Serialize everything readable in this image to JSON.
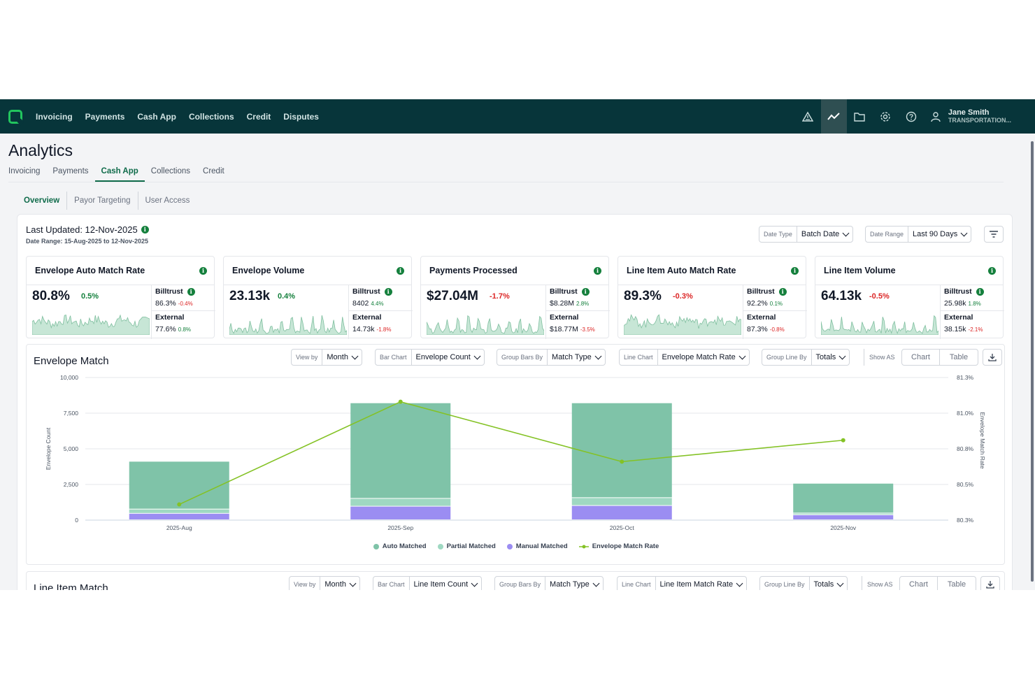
{
  "nav": {
    "links": [
      "Invoicing",
      "Payments",
      "Cash App",
      "Collections",
      "Credit",
      "Disputes"
    ],
    "icons": [
      "alert-triangle-icon",
      "analytics-icon",
      "folder-icon",
      "gear-icon",
      "help-icon",
      "user-icon"
    ],
    "user_name": "Jane Smith",
    "user_org": "TRANSPORTATION..."
  },
  "page": {
    "title": "Analytics",
    "tabs": [
      "Invoicing",
      "Payments",
      "Cash App",
      "Collections",
      "Credit"
    ],
    "active_tab": "Cash App",
    "subtabs": [
      "Overview",
      "Payor Targeting",
      "User Access"
    ],
    "active_subtab": "Overview"
  },
  "header": {
    "last_updated": "Last Updated: 12-Nov-2025",
    "date_range": "Date Range: 15-Aug-2025 to 12-Nov-2025",
    "date_type_label": "Date Type",
    "date_type_value": "Batch Date",
    "date_range_label": "Date Range",
    "date_range_value": "Last 90 Days"
  },
  "kpis": [
    {
      "title": "Envelope Auto Match Rate",
      "value": "80.8%",
      "change": "0.5%",
      "change_dir": "pos",
      "billtrust_label": "Billtrust",
      "billtrust_value": "86.3%",
      "billtrust_change": "-0.4%",
      "billtrust_dir": "neg",
      "external_label": "External",
      "external_value": "77.6%",
      "external_change": "0.8%",
      "external_dir": "pos"
    },
    {
      "title": "Envelope Volume",
      "value": "23.13k",
      "change": "0.4%",
      "change_dir": "pos",
      "billtrust_label": "Billtrust",
      "billtrust_value": "8402",
      "billtrust_change": "4.4%",
      "billtrust_dir": "pos",
      "external_label": "External",
      "external_value": "14.73k",
      "external_change": "-1.8%",
      "external_dir": "neg"
    },
    {
      "title": "Payments Processed",
      "value": "$27.04M",
      "change": "-1.7%",
      "change_dir": "neg",
      "billtrust_label": "Billtrust",
      "billtrust_value": "$8.28M",
      "billtrust_change": "2.8%",
      "billtrust_dir": "pos",
      "external_label": "External",
      "external_value": "$18.77M",
      "external_change": "-3.5%",
      "external_dir": "neg"
    },
    {
      "title": "Line Item Auto Match Rate",
      "value": "89.3%",
      "change": "-0.3%",
      "change_dir": "neg",
      "billtrust_label": "Billtrust",
      "billtrust_value": "92.2%",
      "billtrust_change": "0.1%",
      "billtrust_dir": "pos",
      "external_label": "External",
      "external_value": "87.3%",
      "external_change": "-0.8%",
      "external_dir": "neg"
    },
    {
      "title": "Line Item Volume",
      "value": "64.13k",
      "change": "-0.5%",
      "change_dir": "neg",
      "billtrust_label": "Billtrust",
      "billtrust_value": "25.98k",
      "billtrust_change": "1.8%",
      "billtrust_dir": "pos",
      "external_label": "External",
      "external_value": "38.15k",
      "external_change": "-2.1%",
      "external_dir": "neg"
    }
  ],
  "envelope_panel": {
    "title": "Envelope Match",
    "controls": [
      {
        "label": "View by",
        "value": "Month"
      },
      {
        "label": "Bar Chart",
        "value": "Envelope Count"
      },
      {
        "label": "Group Bars By",
        "value": "Match Type"
      },
      {
        "label": "Line Chart",
        "value": "Envelope Match Rate"
      },
      {
        "label": "Group Line By",
        "value": "Totals"
      }
    ],
    "show_as_label": "Show AS",
    "show_as_options": [
      "Chart",
      "Table"
    ]
  },
  "line_item_panel": {
    "title": "Line Item Match",
    "controls": [
      {
        "label": "View by",
        "value": "Month"
      },
      {
        "label": "Bar Chart",
        "value": "Line Item Count"
      },
      {
        "label": "Group Bars By",
        "value": "Match Type"
      },
      {
        "label": "Line Chart",
        "value": "Line Item Match Rate"
      },
      {
        "label": "Group Line By",
        "value": "Totals"
      }
    ],
    "show_as_label": "Show AS",
    "show_as_options": [
      "Chart",
      "Table"
    ]
  },
  "chart_data": {
    "type": "bar",
    "stacked": true,
    "categories": [
      "2025-Aug",
      "2025-Sep",
      "2025-Oct",
      "2025-Nov"
    ],
    "ylabel": "Envelope Count",
    "y2label": "Envelope Match Rate",
    "ylim": [
      0,
      10000
    ],
    "yticks": [
      "10,000",
      "7,500",
      "5,000",
      "2,500",
      "0"
    ],
    "y2lim": [
      80.3,
      81.3
    ],
    "y2ticks": [
      "81.3%",
      "81.0%",
      "80.8%",
      "80.5%",
      "80.3%"
    ],
    "series": [
      {
        "name": "Manual Matched",
        "color": "#9b8df2",
        "values": [
          450,
          950,
          1000,
          350
        ]
      },
      {
        "name": "Partial Matched",
        "color": "#9fd8c2",
        "values": [
          300,
          550,
          550,
          120
        ]
      },
      {
        "name": "Auto Matched",
        "color": "#7fc3a8",
        "values": [
          3350,
          6700,
          6650,
          2090
        ]
      }
    ],
    "line_series": {
      "name": "Envelope Match Rate",
      "color": "#84c225",
      "values": [
        80.41,
        81.13,
        80.71,
        80.86
      ]
    },
    "legend": [
      "Auto Matched",
      "Partial Matched",
      "Manual Matched",
      "Envelope Match Rate"
    ],
    "legend_colors": [
      "#7fc3a8",
      "#9fd8c2",
      "#9b8df2",
      "#84c225"
    ],
    "grid": true,
    "legend_position": "bottom"
  }
}
